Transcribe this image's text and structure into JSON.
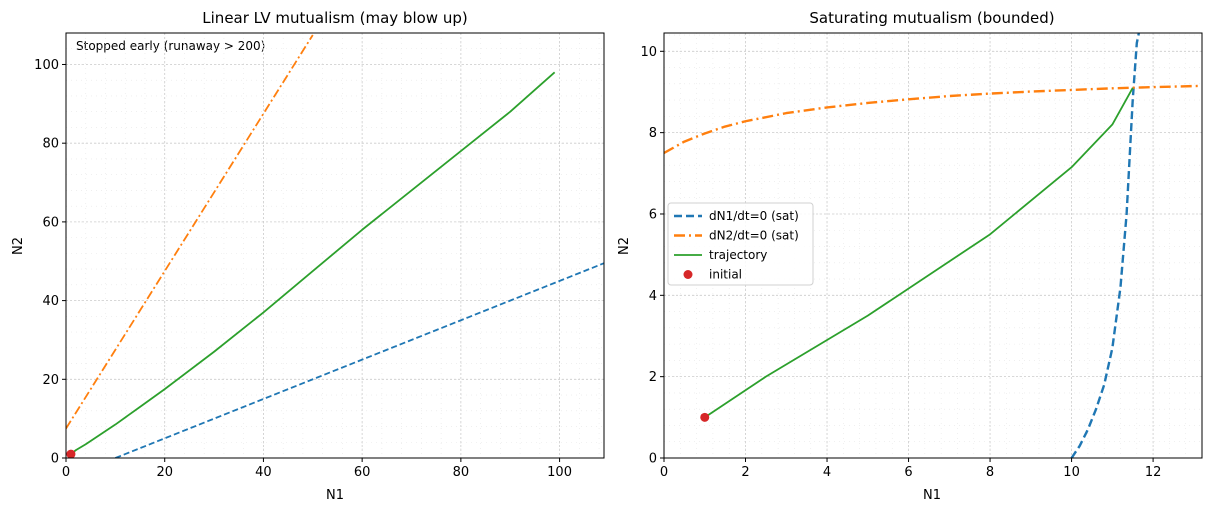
{
  "chart_data": [
    {
      "type": "line",
      "title": "Linear LV mutualism (may blow up)",
      "xlabel": "N1",
      "ylabel": "N2",
      "xlim": [
        0,
        109
      ],
      "ylim": [
        0,
        108
      ],
      "xticks": [
        0,
        20,
        40,
        60,
        80,
        100
      ],
      "yticks": [
        0,
        20,
        40,
        60,
        80,
        100
      ],
      "grid": true,
      "annotation": "Stopped early (runaway > 200)",
      "series": [
        {
          "key": "n1_null",
          "color": "#1f77b4",
          "dash": "6,3",
          "width": 1.8,
          "x": [
            10,
            109
          ],
          "y": [
            0,
            49.5
          ]
        },
        {
          "key": "n2_null",
          "color": "#ff7f0e",
          "dash": "9,3,2,3",
          "width": 1.8,
          "x": [
            0,
            50
          ],
          "y": [
            7.5,
            107.5
          ]
        },
        {
          "key": "traj",
          "color": "#2ca02c",
          "dash": "",
          "width": 1.8,
          "x": [
            1,
            2,
            4,
            7,
            10,
            15,
            20,
            30,
            40,
            50,
            60,
            70,
            80,
            90,
            99
          ],
          "y": [
            1,
            2,
            3.5,
            6,
            8.5,
            13,
            17.5,
            27,
            37,
            47.5,
            58,
            68,
            78,
            88,
            98
          ]
        }
      ],
      "points": [
        {
          "key": "initial",
          "color": "#d62728",
          "x": 1,
          "y": 1
        }
      ]
    },
    {
      "type": "line",
      "title": "Saturating mutualism (bounded)",
      "xlabel": "N1",
      "ylabel": "N2",
      "xlim": [
        0,
        13.2
      ],
      "ylim": [
        0,
        10.45
      ],
      "xticks": [
        0,
        2,
        4,
        6,
        8,
        10,
        12
      ],
      "yticks": [
        0,
        2,
        4,
        6,
        8,
        10
      ],
      "grid": true,
      "legend_position": "center-left",
      "series": [
        {
          "key": "n1_null",
          "name": "dN1/dt=0 (sat)",
          "color": "#1f77b4",
          "dash": "8,4",
          "width": 2.4,
          "x": [
            10,
            10.2,
            10.4,
            10.6,
            10.8,
            11,
            11.2,
            11.35,
            11.5,
            11.6,
            11.65
          ],
          "y": [
            0,
            0.3,
            0.7,
            1.2,
            1.8,
            2.7,
            4.2,
            6.0,
            8.8,
            10.2,
            10.45
          ]
        },
        {
          "key": "n2_null",
          "name": "dN2/dt=0 (sat)",
          "color": "#ff7f0e",
          "dash": "11,4,2,4",
          "width": 2.4,
          "x": [
            0,
            0.5,
            1,
            1.5,
            2,
            3,
            4,
            5,
            6,
            7,
            8,
            9,
            10,
            11,
            12,
            13.2
          ],
          "y": [
            7.5,
            7.78,
            7.98,
            8.15,
            8.28,
            8.48,
            8.62,
            8.73,
            8.82,
            8.9,
            8.96,
            9.01,
            9.05,
            9.09,
            9.12,
            9.15
          ]
        },
        {
          "key": "traj",
          "name": "trajectory",
          "color": "#2ca02c",
          "dash": "",
          "width": 1.8,
          "x": [
            1,
            2.5,
            5,
            8,
            10,
            11,
            11.5
          ],
          "y": [
            1,
            2.0,
            3.5,
            5.5,
            7.15,
            8.2,
            9.1
          ]
        }
      ],
      "points": [
        {
          "key": "initial",
          "name": "initial",
          "color": "#d62728",
          "x": 1,
          "y": 1
        }
      ],
      "legend": [
        {
          "series": "n1_null",
          "label": "dN1/dt=0 (sat)"
        },
        {
          "series": "n2_null",
          "label": "dN2/dt=0 (sat)"
        },
        {
          "series": "traj",
          "label": "trajectory"
        },
        {
          "series": "initial",
          "label": "initial"
        }
      ]
    }
  ]
}
